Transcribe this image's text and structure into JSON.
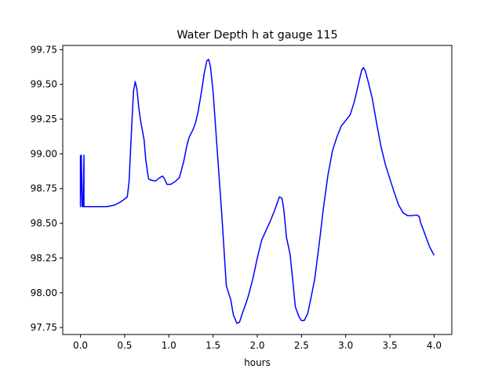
{
  "chart_data": {
    "type": "line",
    "title": "Water Depth h at gauge 115",
    "xlabel": "hours",
    "ylabel": "",
    "xlim": [
      -0.2,
      4.2
    ],
    "ylim": [
      97.7,
      99.78
    ],
    "xticks": [
      0.0,
      0.5,
      1.0,
      1.5,
      2.0,
      2.5,
      3.0,
      3.5,
      4.0
    ],
    "xtick_labels": [
      "0.0",
      "0.5",
      "1.0",
      "1.5",
      "2.0",
      "2.5",
      "3.0",
      "3.5",
      "4.0"
    ],
    "yticks": [
      97.75,
      98.0,
      98.25,
      98.5,
      98.75,
      99.0,
      99.25,
      99.5,
      99.75
    ],
    "ytick_labels": [
      "97.75",
      "98.00",
      "98.25",
      "98.50",
      "98.75",
      "99.00",
      "99.25",
      "99.50",
      "99.75"
    ],
    "grid": false,
    "series": [
      {
        "color": "#0000ff",
        "x": [
          0.0,
          0.0,
          0.01,
          0.02,
          0.03,
          0.04,
          0.04,
          0.05,
          0.1,
          0.2,
          0.3,
          0.38,
          0.43,
          0.48,
          0.53,
          0.55,
          0.58,
          0.6,
          0.62,
          0.64,
          0.66,
          0.68,
          0.72,
          0.74,
          0.77,
          0.8,
          0.85,
          0.9,
          0.93,
          0.95,
          0.98,
          1.02,
          1.07,
          1.12,
          1.17,
          1.2,
          1.23,
          1.27,
          1.3,
          1.33,
          1.37,
          1.4,
          1.43,
          1.45,
          1.47,
          1.5,
          1.55,
          1.6,
          1.65,
          1.7,
          1.73,
          1.77,
          1.8,
          1.83,
          1.87,
          1.9,
          1.95,
          2.0,
          2.05,
          2.1,
          2.15,
          2.2,
          2.25,
          2.28,
          2.3,
          2.33,
          2.37,
          2.4,
          2.43,
          2.47,
          2.5,
          2.53,
          2.57,
          2.6,
          2.65,
          2.7,
          2.75,
          2.8,
          2.85,
          2.9,
          2.95,
          3.0,
          3.05,
          3.1,
          3.15,
          3.18,
          3.2,
          3.22,
          3.25,
          3.3,
          3.35,
          3.4,
          3.45,
          3.5,
          3.55,
          3.6,
          3.65,
          3.7,
          3.75,
          3.8,
          3.83,
          3.85,
          3.88,
          3.92,
          3.95,
          4.0
        ],
        "y": [
          98.99,
          98.62,
          98.99,
          98.62,
          98.62,
          98.99,
          98.62,
          98.62,
          98.62,
          98.62,
          98.62,
          98.63,
          98.645,
          98.665,
          98.69,
          98.8,
          99.2,
          99.45,
          99.52,
          99.46,
          99.33,
          99.24,
          99.1,
          98.95,
          98.82,
          98.81,
          98.805,
          98.83,
          98.84,
          98.82,
          98.78,
          98.78,
          98.8,
          98.83,
          98.95,
          99.05,
          99.12,
          99.17,
          99.22,
          99.3,
          99.45,
          99.58,
          99.67,
          99.68,
          99.63,
          99.45,
          99.0,
          98.55,
          98.05,
          97.95,
          97.84,
          97.78,
          97.79,
          97.85,
          97.92,
          97.98,
          98.1,
          98.25,
          98.38,
          98.45,
          98.52,
          98.6,
          98.69,
          98.68,
          98.6,
          98.4,
          98.28,
          98.1,
          97.9,
          97.83,
          97.8,
          97.8,
          97.85,
          97.94,
          98.1,
          98.35,
          98.62,
          98.85,
          99.02,
          99.12,
          99.2,
          99.24,
          99.28,
          99.38,
          99.52,
          99.6,
          99.62,
          99.6,
          99.53,
          99.4,
          99.22,
          99.05,
          98.92,
          98.82,
          98.72,
          98.63,
          98.575,
          98.555,
          98.555,
          98.56,
          98.55,
          98.5,
          98.45,
          98.38,
          98.33,
          98.27
        ]
      }
    ]
  }
}
